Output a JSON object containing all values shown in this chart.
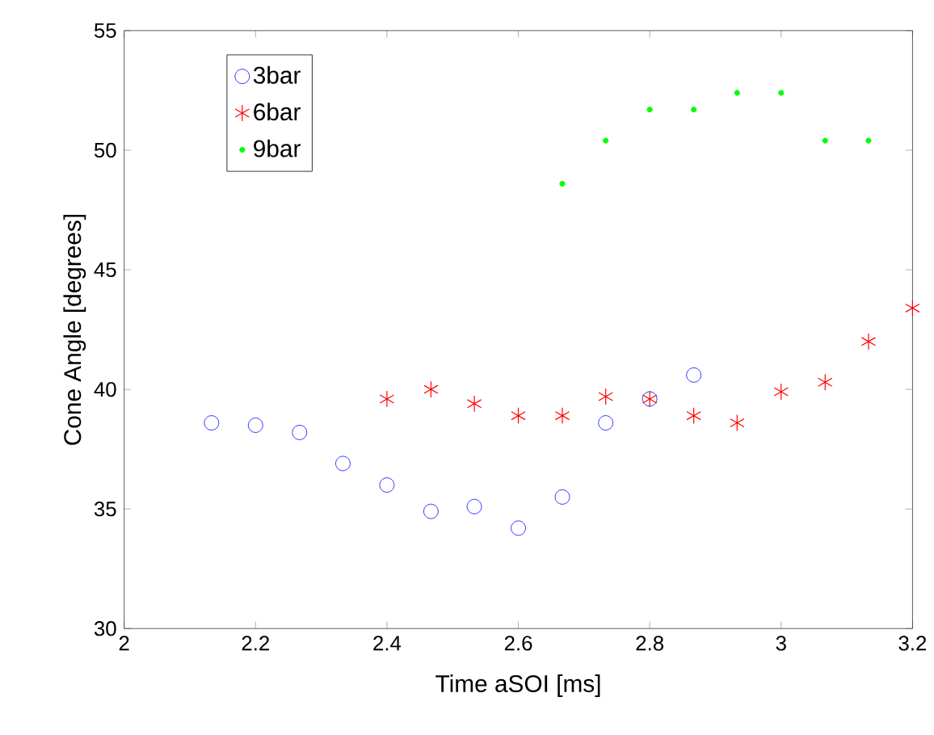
{
  "chart_data": {
    "type": "scatter",
    "xlabel": "Time aSOI [ms]",
    "ylabel": "Cone Angle [degrees]",
    "xlim": [
      2,
      3.2
    ],
    "ylim": [
      30,
      55
    ],
    "xticks": [
      2,
      2.2,
      2.4,
      2.6,
      2.8,
      3,
      3.2
    ],
    "yticks": [
      30,
      35,
      40,
      45,
      50,
      55
    ],
    "grid": false,
    "legend": "top left",
    "series": [
      {
        "name": "3bar",
        "color": "#0000ff",
        "marker": "circle",
        "x": [
          2.133,
          2.2,
          2.267,
          2.333,
          2.4,
          2.467,
          2.533,
          2.6,
          2.667,
          2.733,
          2.8,
          2.867
        ],
        "values": [
          38.6,
          38.5,
          38.2,
          36.9,
          36.0,
          34.9,
          35.1,
          34.2,
          35.5,
          38.6,
          39.6,
          40.6
        ]
      },
      {
        "name": "6bar",
        "color": "#ff0000",
        "marker": "cross",
        "x": [
          2.4,
          2.467,
          2.533,
          2.6,
          2.667,
          2.733,
          2.8,
          2.867,
          2.933,
          3.0,
          3.067,
          3.133,
          3.2
        ],
        "values": [
          39.6,
          40.0,
          39.4,
          38.9,
          38.9,
          39.7,
          39.6,
          38.9,
          38.6,
          39.9,
          40.3,
          42.0,
          43.4
        ]
      },
      {
        "name": "9bar",
        "color": "#00ff00",
        "x": [
          2.667,
          2.733,
          2.8,
          2.867,
          2.933,
          3.0,
          3.067,
          3.133
        ],
        "values": [
          48.6,
          50.4,
          51.7,
          51.7,
          52.4,
          52.4,
          50.4,
          50.4
        ]
      }
    ]
  }
}
